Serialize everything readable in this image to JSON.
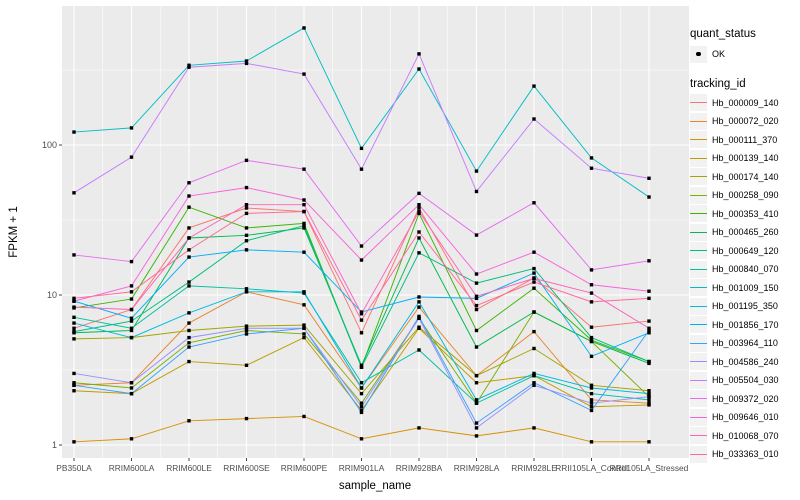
{
  "chart_data": {
    "type": "line",
    "title": "",
    "x_axis": {
      "label": "sample_name",
      "categories": [
        "PB350LA",
        "RRIM600LA",
        "RRIM600LE",
        "RRIM600SE",
        "RRIM600PE",
        "RRIM901LA",
        "RRIM928BA",
        "RRIM928LA",
        "RRIM928LE",
        "RRII105LA_Control",
        "RRII105LA_Stressed"
      ]
    },
    "y_axis": {
      "label": "FPKM + 1",
      "scale": "log10",
      "ticks": [
        1,
        10,
        100
      ],
      "minor_ticks": [
        3.1623,
        31.623,
        316.23
      ],
      "range_approx": [
        0.93,
        870
      ]
    },
    "legend": {
      "quant_status_title": "quant_status",
      "quant_status_items": [
        "OK"
      ],
      "tracking_id_title": "tracking_id",
      "position": "right"
    },
    "style": {
      "panel_color": "#EBEBEB",
      "grid_color": "#FFFFFF",
      "tick_color": "#333333",
      "tick_label_color": "#4D4D4D",
      "legend_key_color": "#F2F2F2",
      "marker": {
        "shape": "square",
        "color": "#000000",
        "size": 3.4
      }
    },
    "series": [
      {
        "name": "Hb_000009_140",
        "color": "#F8766D",
        "values": [
          6.0,
          8.0,
          28,
          38,
          36,
          5.6,
          38,
          8.0,
          13,
          6.1,
          6.7
        ]
      },
      {
        "name": "Hb_000072_020",
        "color": "#EA8331",
        "values": [
          2.5,
          2.6,
          6.5,
          10.5,
          8.6,
          2.4,
          8.3,
          2.9,
          5.7,
          2.0,
          1.9
        ]
      },
      {
        "name": "Hb_000111_370",
        "color": "#D89000",
        "values": [
          1.05,
          1.1,
          1.45,
          1.5,
          1.55,
          1.1,
          1.3,
          1.15,
          1.3,
          1.05,
          1.05
        ]
      },
      {
        "name": "Hb_000139_140",
        "color": "#C09B00",
        "values": [
          2.3,
          2.2,
          3.6,
          3.4,
          5.2,
          1.7,
          6.0,
          2.6,
          2.9,
          1.8,
          1.85
        ]
      },
      {
        "name": "Hb_000174_140",
        "color": "#A3A500",
        "values": [
          5.1,
          5.2,
          5.8,
          6.2,
          6.3,
          2.2,
          6.1,
          2.9,
          4.4,
          2.5,
          2.3
        ]
      },
      {
        "name": "Hb_000258_090",
        "color": "#7CAE00",
        "values": [
          2.6,
          2.4,
          4.8,
          5.8,
          5.5,
          1.9,
          7.0,
          1.9,
          7.7,
          4.9,
          2.1
        ]
      },
      {
        "name": "Hb_000353_410",
        "color": "#39B600",
        "values": [
          8.2,
          9.4,
          38.5,
          28,
          30,
          3.3,
          35,
          5.8,
          11.1,
          5.0,
          3.6
        ]
      },
      {
        "name": "Hb_000465_260",
        "color": "#00BB4E",
        "values": [
          5.6,
          5.8,
          24,
          25,
          28,
          3.4,
          24,
          4.5,
          7.7,
          4.9,
          3.5
        ]
      },
      {
        "name": "Hb_000649_120",
        "color": "#00BF7D",
        "values": [
          5.7,
          6.7,
          12.2,
          23,
          29,
          3.3,
          19.1,
          12.0,
          15.0,
          5.2,
          3.6
        ]
      },
      {
        "name": "Hb_000840_070",
        "color": "#00C1A3",
        "values": [
          7.1,
          6.0,
          11.5,
          11.0,
          10.3,
          2.6,
          4.3,
          1.9,
          2.9,
          2.2,
          2.0
        ]
      },
      {
        "name": "Hb_001009_150",
        "color": "#00BFC4",
        "values": [
          122,
          130,
          340,
          363,
          603,
          95,
          321,
          67,
          247,
          82,
          45
        ]
      },
      {
        "name": "Hb_001195_350",
        "color": "#00BAE0",
        "values": [
          6.5,
          5.2,
          7.6,
          10.5,
          10.5,
          2.4,
          9.0,
          2.0,
          3.0,
          2.4,
          2.2
        ]
      },
      {
        "name": "Hb_001856_170",
        "color": "#00B0F6",
        "values": [
          9.1,
          7.0,
          17.9,
          20,
          19.3,
          7.7,
          9.7,
          9.5,
          14.0,
          3.9,
          5.6
        ]
      },
      {
        "name": "Hb_003964_110",
        "color": "#35A2FF",
        "values": [
          2.5,
          2.2,
          4.5,
          5.5,
          6.0,
          1.65,
          7.2,
          1.4,
          2.6,
          1.7,
          5.8
        ]
      },
      {
        "name": "Hb_004586_240",
        "color": "#9590FF",
        "values": [
          3.0,
          2.6,
          5.2,
          6.0,
          6.0,
          1.8,
          7.0,
          1.3,
          2.5,
          1.9,
          2.1
        ]
      },
      {
        "name": "Hb_005504_030",
        "color": "#C77CFF",
        "values": [
          48,
          83,
          330,
          350,
          297,
          69,
          405,
          49,
          149,
          70,
          60
        ]
      },
      {
        "name": "Hb_009372_020",
        "color": "#E76BF3",
        "values": [
          18.5,
          16.7,
          56,
          79,
          69,
          21.2,
          47.6,
          25.1,
          41.2,
          14.7,
          16.9
        ]
      },
      {
        "name": "Hb_009646_010",
        "color": "#FA62DB",
        "values": [
          9.1,
          11.5,
          45.7,
          52,
          43,
          17.1,
          40,
          13.8,
          19.3,
          11.7,
          10.6
        ]
      },
      {
        "name": "Hb_010068_070",
        "color": "#FF62BC",
        "values": [
          8.3,
          8.0,
          24,
          40,
          40,
          7.5,
          36,
          9.8,
          12.9,
          10.3,
          6.0
        ]
      },
      {
        "name": "Hb_033363_010",
        "color": "#FF6A98",
        "values": [
          9.5,
          10.5,
          20,
          35,
          36,
          6.8,
          26.3,
          8.5,
          12.2,
          9.0,
          9.5
        ]
      }
    ]
  }
}
